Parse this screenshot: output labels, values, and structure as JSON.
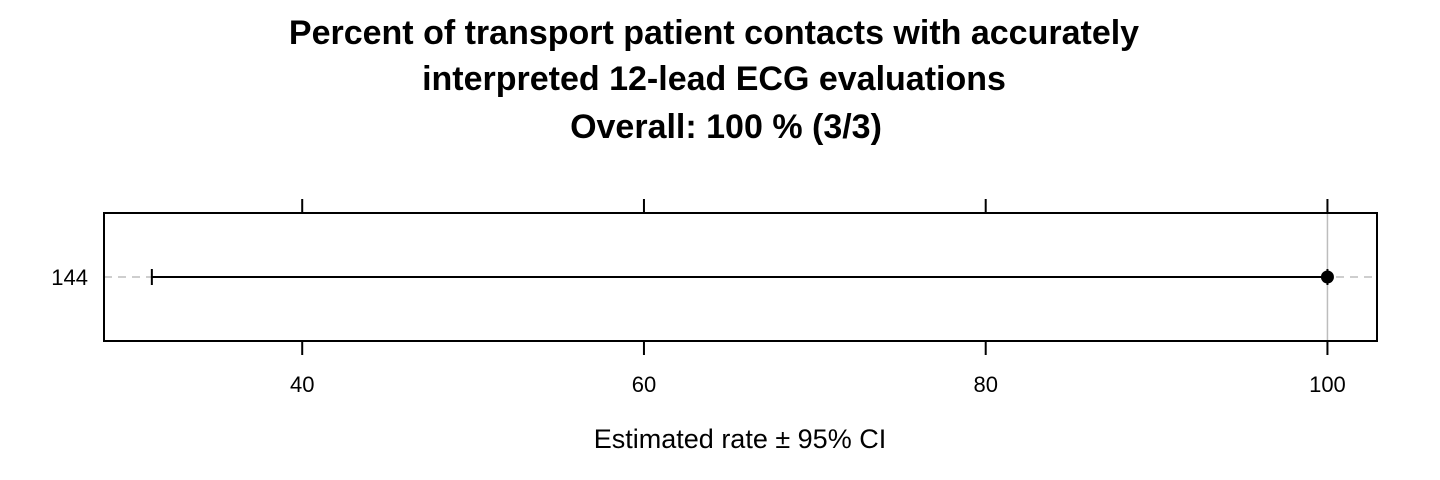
{
  "chart_data": {
    "type": "scatter",
    "title_lines": [
      "Percent of transport patient contacts with accurately",
      "interpreted 12-lead ECG evaluations",
      "Overall:  100 %  (3/3)"
    ],
    "xlabel": "Estimated rate ±  95% CI",
    "ylabel": "",
    "xlim": [
      28.4,
      102.9
    ],
    "xticks": [
      40,
      60,
      80,
      100
    ],
    "categories": [
      "144"
    ],
    "points": [
      {
        "category": "144",
        "estimate": 100,
        "ci_lower": 31.2,
        "ci_upper": 100
      }
    ],
    "reference_line": 100,
    "grid": false
  }
}
